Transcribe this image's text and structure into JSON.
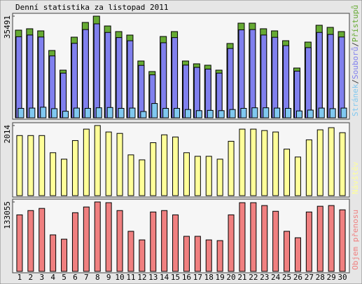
{
  "chart_data": [
    {
      "type": "bar",
      "title": "Denní statistika za listopad 2011",
      "legend_separator": "/",
      "series": [
        {
          "name": "Přístupů",
          "color": "#66aa33",
          "values": [
            30600,
            31090,
            30350,
            23500,
            16640,
            28150,
            33290,
            35491,
            32060,
            30100,
            28880,
            19830,
            16150,
            28390,
            30100,
            19830,
            18850,
            18360,
            16640,
            25950,
            33040,
            33040,
            31090,
            30350,
            26920,
            17380,
            26430,
            32310,
            31570,
            30100
          ]
        },
        {
          "name": "Souborů",
          "color": "#8080ee",
          "values": [
            28300,
            28900,
            28200,
            21600,
            15600,
            26000,
            30800,
            32800,
            29800,
            28000,
            26900,
            18300,
            15000,
            26200,
            28000,
            18400,
            17600,
            17000,
            15600,
            24200,
            30700,
            30800,
            28900,
            28100,
            25200,
            16300,
            24500,
            29800,
            29100,
            28200
          ]
        },
        {
          "name": "Stránek",
          "color": "#80c8f0",
          "values": [
            3300,
            3400,
            3700,
            3200,
            2300,
            3400,
            3300,
            3500,
            3600,
            3300,
            3400,
            2200,
            5000,
            3300,
            3300,
            2900,
            2500,
            2600,
            2500,
            2900,
            3300,
            3500,
            3500,
            3400,
            3300,
            2400,
            2700,
            3400,
            3200,
            3400
          ]
        }
      ],
      "ylim": [
        0,
        35491
      ],
      "yticks": [
        35491
      ]
    },
    {
      "type": "bar",
      "series": [
        {
          "name": "Návštěv",
          "color": "#ffff99",
          "values": [
            1726,
            1726,
            1726,
            1233,
            1048,
            1582,
            1911,
            2014,
            1829,
            1788,
            1171,
            1028,
            1521,
            1747,
            1685,
            1233,
            1130,
            1130,
            1048,
            1562,
            1911,
            1911,
            1870,
            1829,
            1336,
            1110,
            1603,
            1891,
            1952,
            1808
          ]
        }
      ],
      "ylim": [
        0,
        2014
      ],
      "yticks": [
        2014
      ]
    },
    {
      "type": "bar",
      "series": [
        {
          "name": "Objem přenosu",
          "color": "#f08080",
          "values": [
            108365,
            116593,
            120708,
            69957,
            61726,
            112478,
            123454,
            133055,
            131683,
            116593,
            76815,
            60355,
            113850,
            116593,
            108365,
            67213,
            67213,
            60355,
            58983,
            108365,
            131683,
            131683,
            126195,
            115222,
            76815,
            64470,
            113850,
            124824,
            126195,
            117965
          ]
        }
      ],
      "ylim": [
        0,
        133055
      ],
      "yticks": [
        133055
      ],
      "categories": [
        "1",
        "2",
        "3",
        "4",
        "5",
        "6",
        "7",
        "8",
        "9",
        "10",
        "11",
        "12",
        "13",
        "14",
        "15",
        "16",
        "17",
        "18",
        "19",
        "20",
        "21",
        "22",
        "23",
        "24",
        "25",
        "26",
        "27",
        "28",
        "29",
        "30"
      ],
      "category_colors": [
        "#000",
        "#000",
        "#000",
        "#000",
        "#66aa33",
        "#66aa33",
        "#000",
        "#000",
        "#000",
        "#000",
        "#000",
        "#66aa33",
        "#66aa33",
        "#000",
        "#000",
        "#000",
        "#000",
        "#000",
        "#66aa33",
        "#66aa33",
        "#000",
        "#000",
        "#000",
        "#000",
        "#000",
        "#66aa33",
        "#66aa33",
        "#000",
        "#000",
        "#000"
      ]
    }
  ]
}
